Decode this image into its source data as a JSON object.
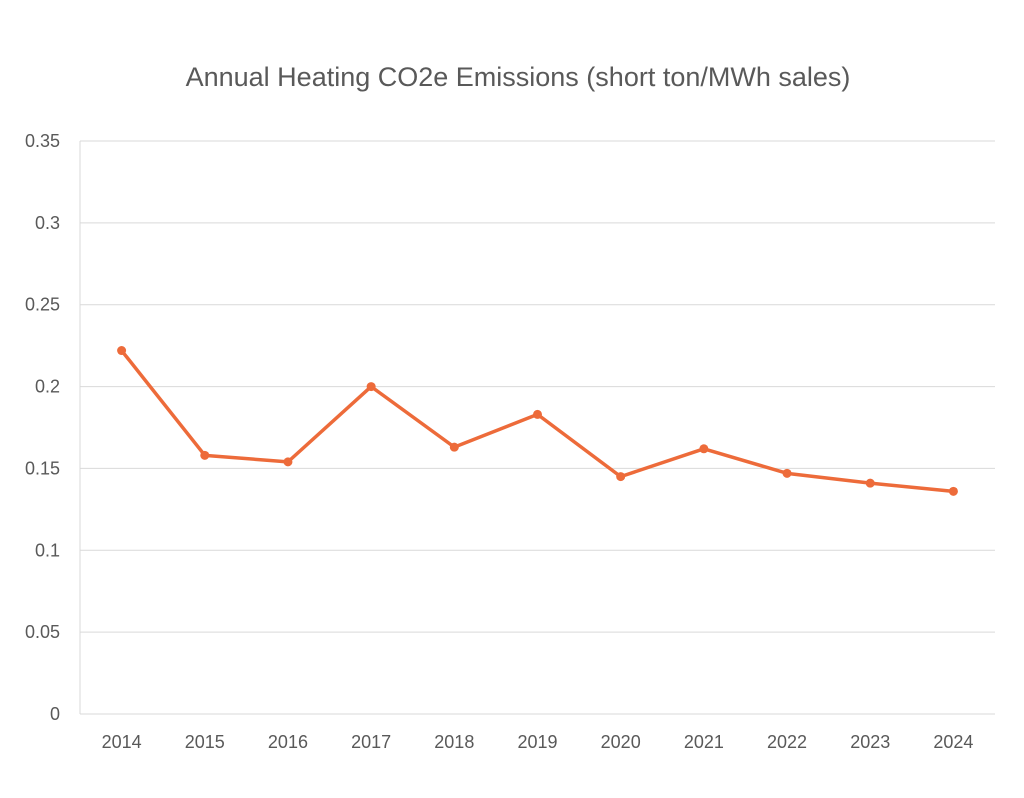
{
  "chart_data": {
    "type": "line",
    "title": "Annual Heating CO2e Emissions (short ton/MWh sales)",
    "xlabel": "",
    "ylabel": "",
    "categories": [
      "2014",
      "2015",
      "2016",
      "2017",
      "2018",
      "2019",
      "2020",
      "2021",
      "2022",
      "2023",
      "2024"
    ],
    "series": [
      {
        "values": [
          0.222,
          0.158,
          0.154,
          0.2,
          0.163,
          0.183,
          0.145,
          0.162,
          0.147,
          0.141,
          0.136
        ],
        "color": "#ED6B3A"
      }
    ],
    "ylim": [
      0,
      0.35
    ],
    "yticks": [
      "0",
      "0.05",
      "0.1",
      "0.15",
      "0.2",
      "0.25",
      "0.3",
      "0.35"
    ],
    "grid": true,
    "gridColor": "#D9D9D9",
    "legend": "none",
    "markers": true
  }
}
